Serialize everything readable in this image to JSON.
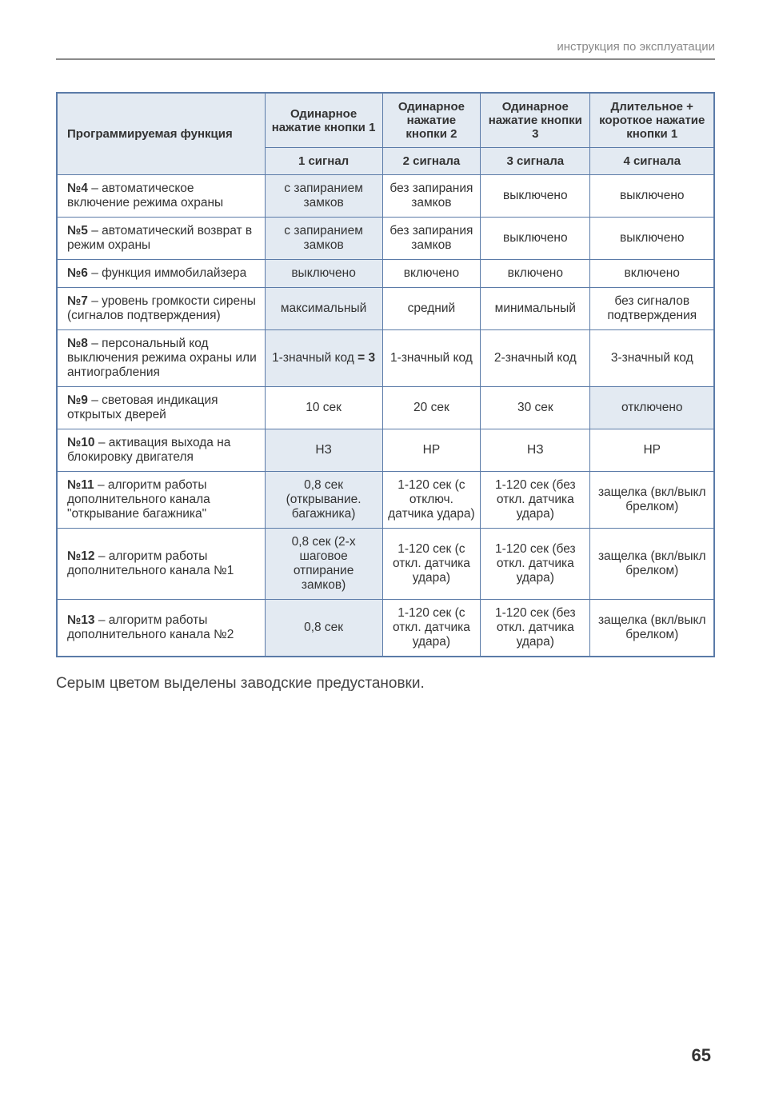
{
  "header": "инструкция по эксплуатации",
  "columns": {
    "func": "Программируемая функция",
    "top": [
      "Одинарное нажатие кнопки 1",
      "Одинарное нажатие кнопки 2",
      "Одинарное нажатие кнопки 3",
      "Длительное + короткое нажатие кнопки 1"
    ],
    "signals": [
      "1 сигнал",
      "2 сигнала",
      "3 сигнала",
      "4 сигнала"
    ]
  },
  "rows": [
    {
      "no": "№4",
      "label": " – автоматическое включение режима охраны",
      "cells": [
        "с запиранием замков",
        "без запирания замков",
        "выключено",
        "выключено"
      ],
      "default_idx": 0
    },
    {
      "no": "№5",
      "label": " – автоматический возврат в режим охраны",
      "cells": [
        "с запиранием замков",
        "без запирания замков",
        "выключено",
        "выключено"
      ],
      "default_idx": 0
    },
    {
      "no": "№6",
      "label": " – функция иммобилайзера",
      "cells": [
        "выключено",
        "включено",
        "включено",
        "включено"
      ],
      "default_idx": 0
    },
    {
      "no": "№7",
      "label": " – уровень громкости сирены (сигналов подтверждения)",
      "cells": [
        "максимальный",
        "средний",
        "минимальный",
        "без сигналов подтверждения"
      ],
      "default_idx": 0
    },
    {
      "no": "№8",
      "label": " – персональный код выключения режима охраны или антиограбления",
      "cells": [
        "1-значный код = 3",
        "1-значный код",
        "2-значный код",
        "3-значный код"
      ],
      "default_idx": 0
    },
    {
      "no": "№9",
      "label": " – световая индикация открытых дверей",
      "cells": [
        "10 сек",
        "20 сек",
        "30 сек",
        "отключено"
      ],
      "default_idx": 3
    },
    {
      "no": "№10",
      "label": " – активация выхода на блокировку двигателя",
      "cells": [
        "НЗ",
        "НР",
        "НЗ",
        "НР"
      ],
      "default_idx": 0
    },
    {
      "no": "№11",
      "label": " – алгоритм работы дополнительного канала \"открывание багажника\"",
      "cells": [
        "0,8 сек (открывание. багажника)",
        "1-120 сек (с отключ. датчика удара)",
        "1-120 сек (без откл. датчика удара)",
        "защелка (вкл/выкл брелком)"
      ],
      "default_idx": 0
    },
    {
      "no": "№12",
      "label": " – алгоритм работы дополнительного канала  №1",
      "cells": [
        "0,8 сек (2-х шаговое отпирание замков)",
        "1-120 сек (с откл. датчика удара)",
        "1-120 сек (без откл. датчика удара)",
        "защелка (вкл/выкл брелком)"
      ],
      "default_idx": 0
    },
    {
      "no": "№13",
      "label": " – алгоритм работы дополнительного канала  №2",
      "cells": [
        "0,8 сек",
        "1-120 сек (с откл. датчика удара)",
        "1-120 сек (без откл. датчика удара)",
        "защелка (вкл/выкл брелком)"
      ],
      "default_idx": 0
    }
  ],
  "footnote": "Серым цветом выделены заводские предустановки.",
  "page_number": "65",
  "colors": {
    "border": "#5b7ba8",
    "shaded_bg": "#e3eaf2",
    "header_text": "#8a8a8a"
  }
}
